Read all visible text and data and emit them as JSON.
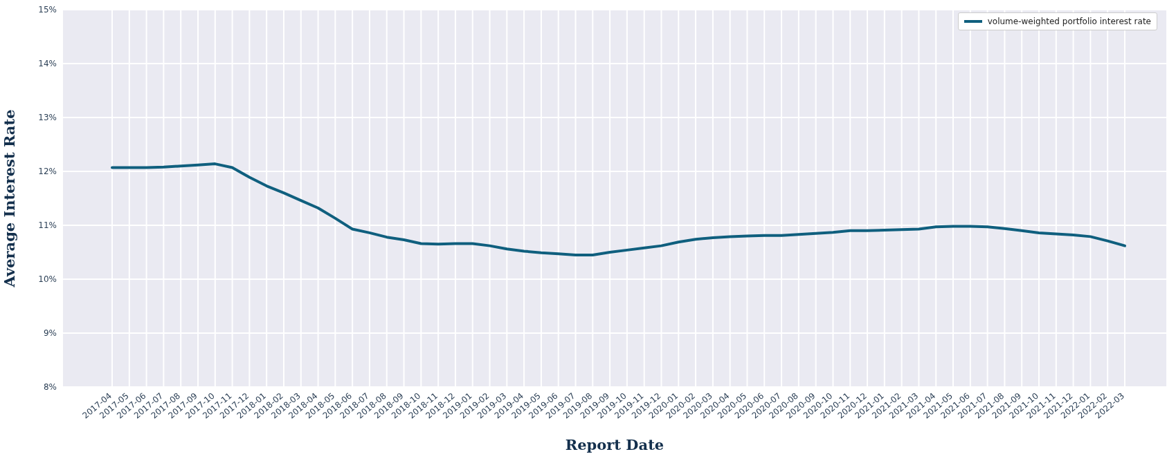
{
  "chart_data": {
    "type": "line",
    "xlabel": "Report Date",
    "ylabel": "Average Interest Rate",
    "categories": [
      "2017-04",
      "2017-05",
      "2017-06",
      "2017-07",
      "2017-08",
      "2017-09",
      "2017-10",
      "2017-11",
      "2017-12",
      "2018-01",
      "2018-02",
      "2018-03",
      "2018-04",
      "2018-05",
      "2018-06",
      "2018-07",
      "2018-08",
      "2018-09",
      "2018-10",
      "2018-11",
      "2018-12",
      "2019-01",
      "2019-02",
      "2019-03",
      "2019-04",
      "2019-05",
      "2019-06",
      "2019-07",
      "2019-08",
      "2019-09",
      "2019-10",
      "2019-11",
      "2019-12",
      "2020-01",
      "2020-02",
      "2020-03",
      "2020-04",
      "2020-05",
      "2020-06",
      "2020-07",
      "2020-08",
      "2020-09",
      "2020-10",
      "2020-11",
      "2020-12",
      "2021-01",
      "2021-02",
      "2021-03",
      "2021-04",
      "2021-05",
      "2021-06",
      "2021-07",
      "2021-08",
      "2021-09",
      "2021-10",
      "2021-11",
      "2021-12",
      "2022-01",
      "2022-02",
      "2022-03"
    ],
    "series": [
      {
        "name": "volume-weighted portfolio interest rate",
        "color": "#0f5f7e",
        "values": [
          12.07,
          12.07,
          12.07,
          12.08,
          12.1,
          12.12,
          12.14,
          12.07,
          11.89,
          11.73,
          11.6,
          11.46,
          11.32,
          11.13,
          10.93,
          10.86,
          10.78,
          10.73,
          10.66,
          10.65,
          10.66,
          10.66,
          10.62,
          10.56,
          10.52,
          10.49,
          10.47,
          10.45,
          10.45,
          10.5,
          10.54,
          10.58,
          10.62,
          10.69,
          10.74,
          10.77,
          10.79,
          10.8,
          10.81,
          10.81,
          10.83,
          10.85,
          10.87,
          10.9,
          10.9,
          10.91,
          10.92,
          10.93,
          10.97,
          10.98,
          10.98,
          10.97,
          10.94,
          10.9,
          10.86,
          10.84,
          10.82,
          10.79,
          10.71,
          10.62
        ]
      }
    ],
    "ylim": [
      8,
      15
    ],
    "yticks": [
      {
        "value": 8,
        "label": "8%"
      },
      {
        "value": 9,
        "label": "9%"
      },
      {
        "value": 10,
        "label": "10%"
      },
      {
        "value": 11,
        "label": "11%"
      },
      {
        "value": 12,
        "label": "12%"
      },
      {
        "value": 13,
        "label": "13%"
      },
      {
        "value": 14,
        "label": "14%"
      },
      {
        "value": 15,
        "label": "15%"
      }
    ],
    "grid": true,
    "legend": "top right",
    "marker": "none",
    "line_style": "solid"
  }
}
